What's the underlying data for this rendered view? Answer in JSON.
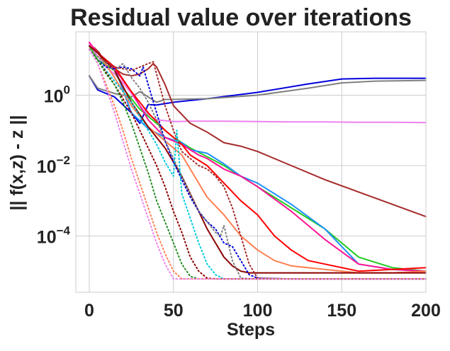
{
  "chart_data": {
    "type": "line",
    "title": "Residual value over iterations",
    "xlabel": "Steps",
    "ylabel": "|| f(x,z)  - z ||",
    "xlim": [
      -8,
      200
    ],
    "ylim_log10": [
      -5.6,
      1.8
    ],
    "scale_y": "log",
    "grid": true,
    "legend": "none",
    "x_ticks": [
      0,
      50,
      100,
      150,
      200
    ],
    "x_tick_labels": [
      "0",
      "50",
      "100",
      "150",
      "200"
    ],
    "y_ticks_log10": [
      0,
      -2,
      -4
    ],
    "y_tick_bases": [
      "10",
      "10",
      "10"
    ],
    "y_tick_exponents": [
      "0",
      "−2",
      "−4"
    ],
    "series": [
      {
        "name": "blue-solid",
        "color": "#0000dd",
        "style": "solid",
        "x": [
          0,
          5,
          15,
          25,
          30,
          35,
          40,
          50,
          70,
          100,
          130,
          150,
          170,
          200
        ],
        "y": [
          0.55,
          0.15,
          -0.05,
          -0.5,
          -0.8,
          -0.27,
          -0.28,
          -0.2,
          -0.1,
          0.08,
          0.32,
          0.46,
          0.48,
          0.48
        ]
      },
      {
        "name": "gray-solid",
        "color": "#808080",
        "style": "solid",
        "x": [
          0,
          5,
          15,
          25,
          30,
          35,
          40,
          45,
          50,
          70,
          100,
          130,
          150,
          170,
          200
        ],
        "y": [
          0.55,
          0.2,
          0.05,
          -0.05,
          0.1,
          -0.05,
          -0.2,
          -0.12,
          -0.12,
          -0.1,
          0.0,
          0.2,
          0.35,
          0.4,
          0.42
        ]
      },
      {
        "name": "violet-solid",
        "color": "#ee82ee",
        "style": "solid",
        "x": [
          0,
          5,
          10,
          15,
          20,
          25,
          30,
          35,
          40,
          50,
          60,
          80,
          100,
          120,
          140,
          160,
          180,
          200
        ],
        "y": [
          1.45,
          1.1,
          0.8,
          0.6,
          0.35,
          0.05,
          -0.3,
          -0.55,
          -0.7,
          -0.75,
          -0.74,
          -0.74,
          -0.75,
          -0.76,
          -0.76,
          -0.77,
          -0.77,
          -0.78
        ]
      },
      {
        "name": "brown-solid",
        "color": "#a52a2a",
        "style": "solid",
        "x": [
          0,
          3,
          6,
          10,
          15,
          20,
          25,
          30,
          35,
          38,
          40,
          45,
          50,
          60,
          70,
          80,
          90,
          100,
          120,
          140,
          160,
          180,
          200
        ],
        "y": [
          1.3,
          1.35,
          1.2,
          0.85,
          0.75,
          0.6,
          0.55,
          0.6,
          0.75,
          0.9,
          0.8,
          0.3,
          -0.3,
          -0.8,
          -1.05,
          -1.35,
          -1.45,
          -1.6,
          -2.0,
          -2.4,
          -2.75,
          -3.1,
          -3.45
        ]
      },
      {
        "name": "green-solid",
        "color": "#22cc22",
        "style": "solid",
        "x": [
          0,
          5,
          15,
          20,
          25,
          30,
          40,
          50,
          60,
          70,
          80,
          100,
          120,
          140,
          150,
          160,
          180,
          200
        ],
        "y": [
          1.4,
          1.0,
          0.7,
          0.2,
          -0.1,
          -0.4,
          -0.8,
          -1.2,
          -1.5,
          -1.75,
          -2.0,
          -2.6,
          -3.2,
          -3.8,
          -4.2,
          -4.6,
          -4.9,
          -5.0
        ]
      },
      {
        "name": "dodgerblue-solid",
        "color": "#1e90ff",
        "style": "solid",
        "x": [
          0,
          5,
          15,
          25,
          35,
          45,
          55,
          60,
          70,
          80,
          90,
          100,
          120,
          140,
          150,
          160,
          180,
          200
        ],
        "y": [
          1.4,
          1.2,
          0.8,
          -0.5,
          -0.95,
          -1.2,
          -1.35,
          -1.55,
          -1.65,
          -1.95,
          -2.3,
          -2.5,
          -3.1,
          -3.8,
          -4.3,
          -4.8,
          -4.95,
          -5.0
        ]
      },
      {
        "name": "deeppink-solid",
        "color": "#ff1493",
        "style": "solid",
        "x": [
          0,
          5,
          15,
          25,
          35,
          45,
          55,
          60,
          65,
          70,
          80,
          90,
          100,
          120,
          140,
          160,
          180,
          200
        ],
        "y": [
          1.5,
          1.2,
          0.75,
          0.1,
          -0.7,
          -1.2,
          -1.4,
          -1.55,
          -1.7,
          -1.8,
          -2.1,
          -2.3,
          -2.6,
          -3.3,
          -4.1,
          -4.8,
          -4.95,
          -5.0
        ]
      },
      {
        "name": "red-solid",
        "color": "#ff0000",
        "style": "solid",
        "x": [
          0,
          5,
          15,
          25,
          35,
          45,
          55,
          60,
          70,
          80,
          90,
          100,
          110,
          120,
          130,
          140,
          160,
          180,
          200
        ],
        "y": [
          1.4,
          1.2,
          0.8,
          0.1,
          -0.5,
          -1.0,
          -1.4,
          -1.7,
          -2.0,
          -2.5,
          -3.0,
          -3.4,
          -4.0,
          -4.4,
          -4.7,
          -4.8,
          -5.0,
          -4.95,
          -4.9
        ]
      },
      {
        "name": "coral-solid",
        "color": "#ff7f50",
        "style": "solid",
        "x": [
          0,
          5,
          15,
          25,
          35,
          45,
          55,
          60,
          70,
          80,
          90,
          100,
          110,
          120,
          140,
          160,
          180,
          200
        ],
        "y": [
          1.4,
          1.2,
          0.5,
          -0.3,
          -0.9,
          -1.3,
          -1.7,
          -2.1,
          -2.9,
          -3.4,
          -4.0,
          -4.4,
          -4.7,
          -4.85,
          -4.95,
          -5.05,
          -5.05,
          -5.0
        ]
      },
      {
        "name": "darkred-solid",
        "color": "#8b0000",
        "style": "solid",
        "x": [
          0,
          5,
          15,
          25,
          35,
          45,
          55,
          60,
          65,
          70,
          75,
          80,
          85,
          90,
          95,
          100,
          120,
          140,
          160,
          180,
          200
        ],
        "y": [
          1.4,
          1.2,
          0.7,
          -0.2,
          -0.9,
          -1.5,
          -2.3,
          -2.8,
          -3.3,
          -3.8,
          -4.2,
          -4.6,
          -4.85,
          -5.0,
          -5.05,
          -5.05,
          -5.05,
          -5.05,
          -5.05,
          -5.05,
          -5.05
        ]
      },
      {
        "name": "blue-dotted",
        "color": "#0000dd",
        "style": "dotted",
        "x": [
          0,
          5,
          10,
          15,
          20,
          25,
          30,
          32,
          35,
          40,
          45,
          50,
          55,
          60,
          65,
          70,
          75,
          80,
          85,
          90,
          95,
          100,
          120,
          150,
          180,
          200
        ],
        "y": [
          1.3,
          1.0,
          0.8,
          0.75,
          0.8,
          0.75,
          0.55,
          0.8,
          0.3,
          -0.5,
          -1.3,
          -1.9,
          -2.4,
          -2.9,
          -3.3,
          -3.6,
          -3.8,
          -4.2,
          -4.3,
          -4.7,
          -5.1,
          -5.2,
          -5.22,
          -5.22,
          -5.22,
          -5.22
        ]
      },
      {
        "name": "brown-dotted",
        "color": "#a52a2a",
        "style": "dotted",
        "x": [
          0,
          5,
          15,
          25,
          35,
          38,
          40,
          45,
          50,
          55,
          60,
          65,
          70,
          75,
          80,
          85,
          90,
          95,
          100,
          120,
          150,
          200
        ],
        "y": [
          1.3,
          1.1,
          0.8,
          0.7,
          0.9,
          0.95,
          0.6,
          -0.3,
          -1.0,
          -1.6,
          -1.8,
          -2.0,
          -2.1,
          -2.3,
          -2.6,
          -3.2,
          -4.0,
          -4.8,
          -5.2,
          -5.22,
          -5.22,
          -5.22
        ]
      },
      {
        "name": "gray-dotted",
        "color": "#808080",
        "style": "dotted",
        "x": [
          0,
          5,
          15,
          20,
          25,
          30,
          35,
          40,
          45,
          50,
          55,
          60,
          65,
          70,
          75,
          78,
          80,
          85,
          90,
          100,
          150,
          200
        ],
        "y": [
          1.3,
          1.1,
          0.7,
          0.9,
          0.5,
          0.2,
          -0.2,
          -0.7,
          -1.3,
          -1.8,
          -2.3,
          -2.8,
          -3.3,
          -3.6,
          -3.9,
          -4.0,
          -3.7,
          -4.7,
          -5.2,
          -5.22,
          -5.22,
          -5.22
        ]
      },
      {
        "name": "cyan-dotted",
        "color": "#00ccdd",
        "style": "dotted",
        "x": [
          0,
          5,
          15,
          25,
          35,
          40,
          45,
          50,
          52,
          55,
          60,
          65,
          70,
          75,
          80,
          100,
          150,
          200
        ],
        "y": [
          1.3,
          1.0,
          0.4,
          -0.2,
          -1.0,
          -1.4,
          -1.9,
          -2.3,
          -1.0,
          -2.8,
          -3.5,
          -4.2,
          -4.8,
          -5.1,
          -5.22,
          -5.22,
          -5.22,
          -5.22
        ]
      },
      {
        "name": "darkred-dotted",
        "color": "#8b0000",
        "style": "dotted",
        "x": [
          0,
          5,
          15,
          25,
          30,
          35,
          40,
          45,
          50,
          55,
          60,
          65,
          70,
          75,
          100,
          150,
          200
        ],
        "y": [
          1.3,
          1.0,
          0.3,
          -0.5,
          -1.0,
          -1.5,
          -2.0,
          -2.6,
          -3.3,
          -3.9,
          -4.6,
          -5.0,
          -5.2,
          -5.22,
          -5.22,
          -5.22,
          -5.22
        ]
      },
      {
        "name": "green-dotted",
        "color": "#228b22",
        "style": "dotted",
        "x": [
          0,
          5,
          10,
          15,
          20,
          25,
          30,
          35,
          40,
          45,
          50,
          55,
          60,
          65,
          100,
          150,
          200
        ],
        "y": [
          1.3,
          1.0,
          0.6,
          0.3,
          -0.2,
          -0.8,
          -1.5,
          -2.2,
          -3.0,
          -3.6,
          -4.2,
          -4.8,
          -5.15,
          -5.22,
          -5.22,
          -5.22,
          -5.22
        ]
      },
      {
        "name": "coral-dotted",
        "color": "#ff7f50",
        "style": "dotted",
        "x": [
          0,
          5,
          10,
          15,
          20,
          25,
          30,
          35,
          40,
          45,
          50,
          55,
          100,
          150,
          200
        ],
        "y": [
          1.3,
          0.9,
          0.3,
          -0.3,
          -1.0,
          -1.8,
          -2.5,
          -3.2,
          -3.9,
          -4.5,
          -5.0,
          -5.22,
          -5.22,
          -5.22,
          -5.22
        ]
      },
      {
        "name": "violet-dotted",
        "color": "#ee82ee",
        "style": "dotted",
        "x": [
          0,
          5,
          10,
          15,
          20,
          25,
          30,
          35,
          40,
          45,
          50,
          100,
          150,
          200
        ],
        "y": [
          1.3,
          0.9,
          0.2,
          -0.5,
          -1.3,
          -2.1,
          -2.8,
          -3.5,
          -4.2,
          -4.8,
          -5.22,
          -5.22,
          -5.22,
          -5.22
        ]
      }
    ]
  }
}
